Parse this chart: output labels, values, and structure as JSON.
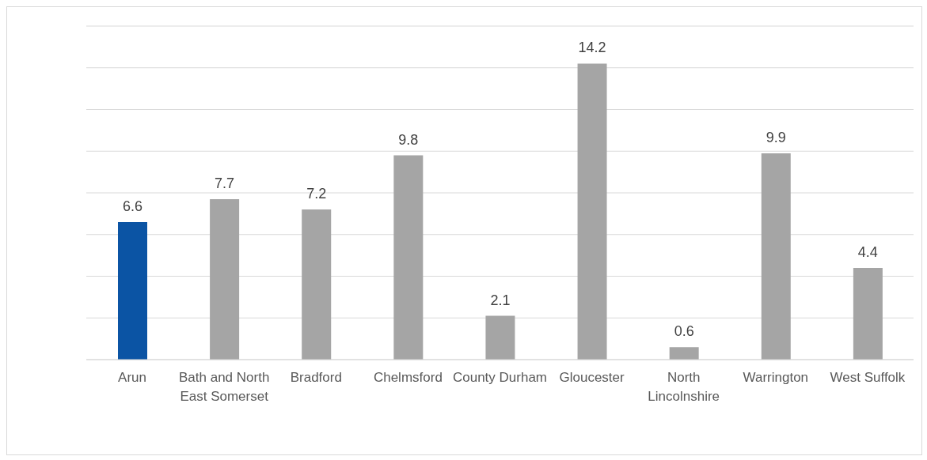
{
  "chart_data": {
    "type": "bar",
    "categories": [
      "Arun",
      "Bath and North East Somerset",
      "Bradford",
      "Chelmsford",
      "County Durham",
      "Gloucester",
      "North Lincolnshire",
      "Warrington",
      "West Suffolk"
    ],
    "values": [
      6.6,
      7.7,
      7.2,
      9.8,
      2.1,
      14.2,
      0.6,
      9.9,
      4.4
    ],
    "colors": [
      "#0b54a4",
      "#a5a5a5",
      "#a5a5a5",
      "#a5a5a5",
      "#a5a5a5",
      "#a5a5a5",
      "#a5a5a5",
      "#a5a5a5",
      "#a5a5a5"
    ],
    "ylim": [
      0,
      16
    ],
    "yticks": [
      {
        "value": 0,
        "label": null
      },
      {
        "value": 2,
        "label": null
      },
      {
        "value": 4,
        "label": null
      },
      {
        "value": 6,
        "label": null
      },
      {
        "value": 8,
        "label": null
      },
      {
        "value": 10,
        "label": null
      },
      {
        "value": 12,
        "label": null
      },
      {
        "value": 14,
        "label": null
      },
      {
        "value": 16,
        "label": null
      }
    ],
    "grid": "y",
    "data_labels": true
  }
}
